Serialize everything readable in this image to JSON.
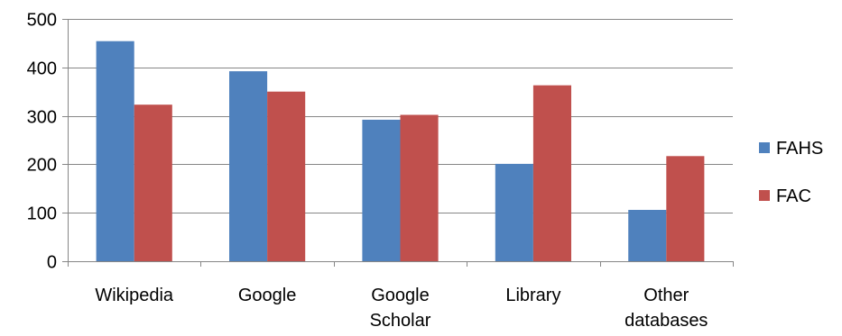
{
  "chart_data": {
    "type": "bar",
    "categories": [
      [
        "Wikipedia"
      ],
      [
        "Google"
      ],
      [
        "Google",
        "Scholar"
      ],
      [
        "Library"
      ],
      [
        "Other",
        "databases"
      ]
    ],
    "series": [
      {
        "name": "FAHS",
        "color": "#4F81BD",
        "values": [
          454,
          392,
          292,
          201,
          106
        ]
      },
      {
        "name": "FAC",
        "color": "#C0504D",
        "values": [
          323,
          350,
          302,
          363,
          217
        ]
      }
    ],
    "ylim": [
      0,
      500
    ],
    "yticks": [
      0,
      100,
      200,
      300,
      400,
      500
    ],
    "grid": true,
    "legend_position": "right"
  }
}
